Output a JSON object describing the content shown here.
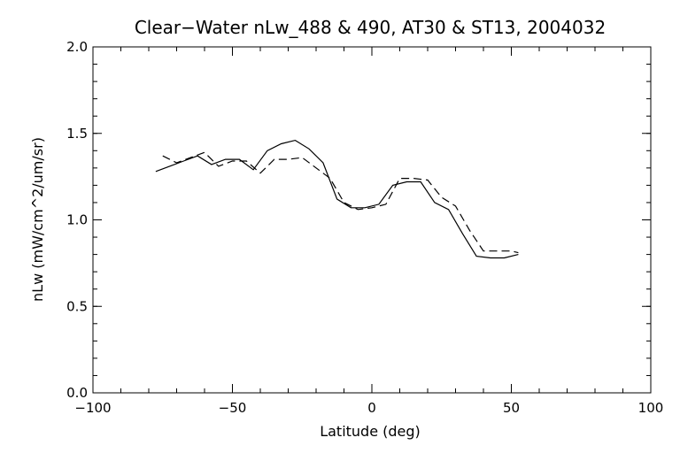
{
  "chart_data": {
    "type": "line",
    "title": "Clear−Water nLw_488 & 490, AT30 & ST13, 2004032",
    "xlabel": "Latitude (deg)",
    "ylabel": "nLw (mW/cm^2/um/sr)",
    "xlim": [
      -100,
      100
    ],
    "ylim": [
      0.0,
      2.0
    ],
    "x_ticks": [
      "−100",
      "−50",
      "0",
      "50",
      "100"
    ],
    "x_tick_values": [
      -100,
      -50,
      0,
      50,
      100
    ],
    "y_ticks": [
      "0.0",
      "0.5",
      "1.0",
      "1.5",
      "2.0"
    ],
    "y_tick_values": [
      0.0,
      0.5,
      1.0,
      1.5,
      2.0
    ],
    "x_minor_step": 10,
    "y_minor_step": 0.1,
    "grid": false,
    "series": [
      {
        "style": "solid",
        "x": [
          -77.5,
          -72.5,
          -67.5,
          -62.5,
          -57.5,
          -52.5,
          -47.5,
          -42.5,
          -37.5,
          -32.5,
          -27.5,
          -22.5,
          -17.5,
          -12.5,
          -7.5,
          -2.5,
          2.5,
          7.5,
          12.5,
          17.5,
          22.5,
          27.5,
          32.5,
          37.5,
          42.5,
          47.5,
          52.5
        ],
        "y": [
          1.28,
          1.31,
          1.34,
          1.37,
          1.32,
          1.35,
          1.35,
          1.29,
          1.4,
          1.44,
          1.46,
          1.41,
          1.33,
          1.12,
          1.07,
          1.07,
          1.09,
          1.2,
          1.22,
          1.22,
          1.1,
          1.06,
          0.92,
          0.79,
          0.78,
          0.78,
          0.8
        ]
      },
      {
        "style": "dashed",
        "x": [
          -75,
          -70,
          -65,
          -60,
          -55,
          -50,
          -45,
          -40,
          -35,
          -30,
          -25,
          -20,
          -15,
          -10,
          -5,
          0,
          5,
          10,
          15,
          20,
          25,
          30,
          35,
          40,
          45,
          50,
          52.5
        ],
        "y": [
          1.37,
          1.33,
          1.36,
          1.39,
          1.31,
          1.34,
          1.34,
          1.27,
          1.35,
          1.35,
          1.36,
          1.3,
          1.24,
          1.1,
          1.06,
          1.07,
          1.09,
          1.24,
          1.24,
          1.23,
          1.13,
          1.08,
          0.94,
          0.82,
          0.82,
          0.82,
          0.81
        ]
      }
    ]
  }
}
